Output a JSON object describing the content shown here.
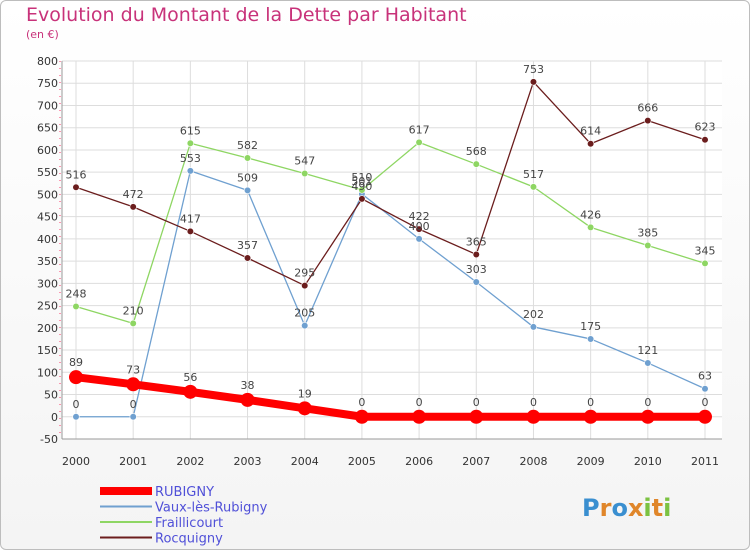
{
  "header": {
    "title": "Evolution du Montant de la Dette par Habitant",
    "subtitle": "(en €)"
  },
  "logo": {
    "text": "Proxiti"
  },
  "colors": {
    "title": "#c8327a",
    "legend_text": "#5050d8"
  },
  "chart_data": {
    "type": "line",
    "title": "Evolution du Montant de la Dette par Habitant",
    "subtitle": "(en €)",
    "x": [
      "2000",
      "2001",
      "2002",
      "2003",
      "2004",
      "2005",
      "2006",
      "2007",
      "2008",
      "2009",
      "2010",
      "2011"
    ],
    "ylim": [
      -50,
      800
    ],
    "yticks": [
      -50,
      0,
      50,
      100,
      150,
      200,
      250,
      300,
      350,
      400,
      450,
      500,
      550,
      600,
      650,
      700,
      750,
      800
    ],
    "grid": true,
    "legend_position": "bottom-left",
    "series": [
      {
        "name": "RUBIGNY",
        "color": "#ff0000",
        "values": [
          89,
          73,
          56,
          38,
          19,
          0,
          0,
          0,
          0,
          0,
          0,
          0
        ]
      },
      {
        "name": "Vaux-lès-Rubigny",
        "color": "#6fa0d0",
        "values": [
          0,
          0,
          553,
          509,
          205,
          501,
          400,
          303,
          202,
          175,
          121,
          63
        ]
      },
      {
        "name": "Fraillicourt",
        "color": "#8ed663",
        "values": [
          248,
          210,
          615,
          582,
          547,
          510,
          617,
          568,
          517,
          426,
          385,
          345
        ]
      },
      {
        "name": "Rocquigny",
        "color": "#6b1d1d",
        "values": [
          516,
          472,
          417,
          357,
          295,
          490,
          422,
          365,
          753,
          614,
          666,
          623
        ]
      }
    ]
  }
}
